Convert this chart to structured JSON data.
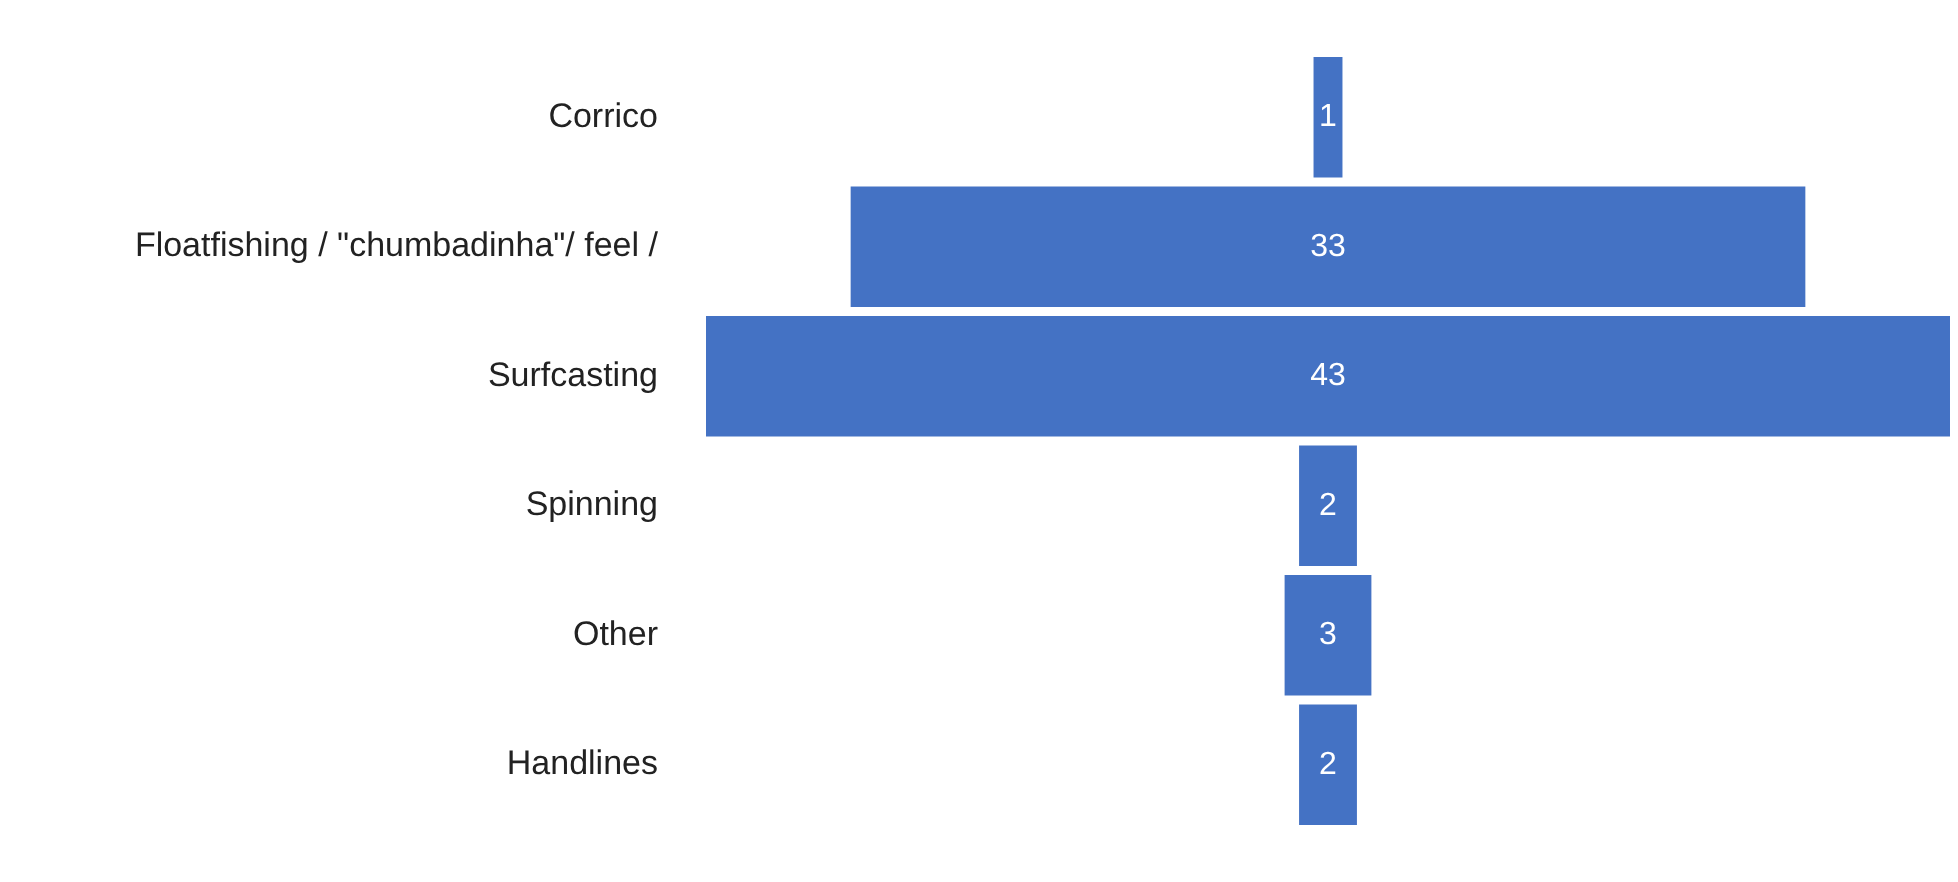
{
  "chart_data": {
    "type": "other",
    "categories": [
      "Corrico",
      "Floatfishing / \"chumbadinha\"/ feel /",
      "Surfcasting",
      "Spinning",
      "Other",
      "Handlines"
    ],
    "values": [
      1,
      33,
      43,
      2,
      3,
      2
    ],
    "color": "#4472c4",
    "data_labels": true
  }
}
